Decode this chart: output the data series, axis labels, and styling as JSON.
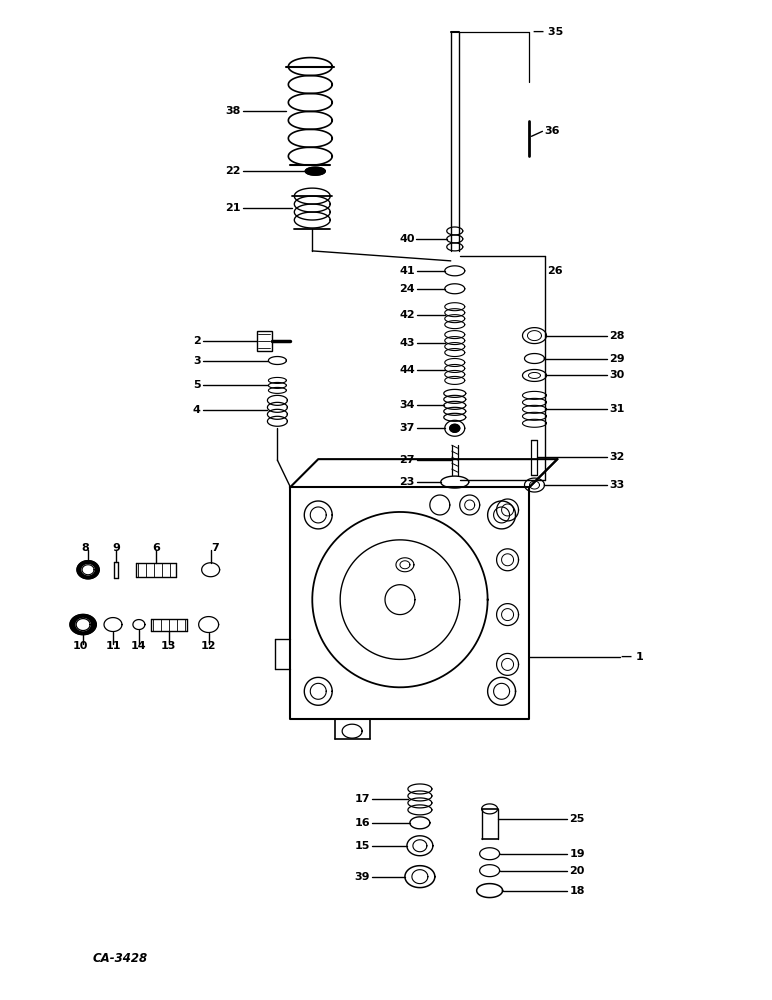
{
  "bg_color": "#ffffff",
  "lc": "#000000",
  "tc": "#000000",
  "caption": "CA-3428",
  "fig_w": 7.72,
  "fig_h": 10.0
}
